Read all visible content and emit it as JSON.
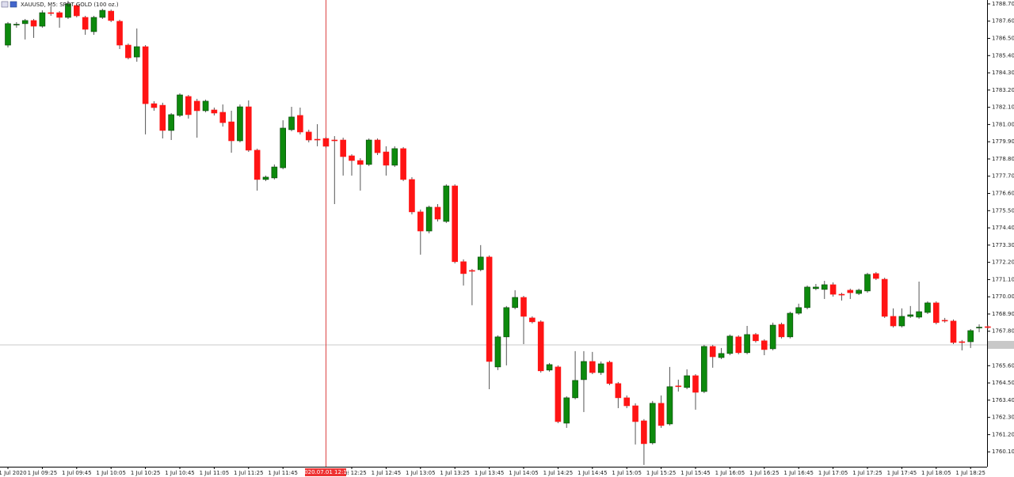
{
  "chart_data": {
    "type": "candlestick",
    "title": "XAUUSD, M5: SPOT GOLD (100 oz.)",
    "crosshair_label": "2020.07.01 12:15",
    "price_line": 1766.93,
    "up_color": "#0d8a0d",
    "down_color": "#ff1414",
    "wick_color": "#555555",
    "categories": [
      "1 Jul 2020",
      null,
      null,
      null,
      "1 Jul 09:25",
      null,
      null,
      null,
      "1 Jul 09:45",
      null,
      null,
      null,
      "1 Jul 10:05",
      null,
      null,
      null,
      "1 Jul 10:25",
      null,
      null,
      null,
      "1 Jul 10:45",
      null,
      null,
      null,
      "1 Jul 11:05",
      null,
      null,
      null,
      "1 Jul 11:25",
      null,
      null,
      null,
      "1 Jul 11:45",
      null,
      null,
      null,
      null,
      null,
      null,
      null,
      "1 Jul 12:25",
      null,
      null,
      null,
      "1 Jul 12:45",
      null,
      null,
      null,
      "1 Jul 13:05",
      null,
      null,
      null,
      "1 Jul 13:25",
      null,
      null,
      null,
      "1 Jul 13:45",
      null,
      null,
      null,
      "1 Jul 14:05",
      null,
      null,
      null,
      "1 Jul 14:25",
      null,
      null,
      null,
      "1 Jul 14:45",
      null,
      null,
      null,
      "1 Jul 15:05",
      null,
      null,
      null,
      "1 Jul 15:25",
      null,
      null,
      null,
      "1 Jul 15:45",
      null,
      null,
      null,
      "1 Jul 16:05",
      null,
      null,
      null,
      "1 Jul 16:25",
      null,
      null,
      null,
      "1 Jul 16:45",
      null,
      null,
      null,
      "1 Jul 17:05",
      null,
      null,
      null,
      "1 Jul 17:25",
      null,
      null,
      null,
      "1 Jul 17:45",
      null,
      null,
      null,
      "1 Jul 18:05",
      null,
      null,
      null,
      "1 Jul 18:25",
      null,
      null
    ],
    "open": [
      1786.07,
      1787.36,
      1787.44,
      1787.64,
      1787.28,
      1788.14,
      1788.14,
      1787.84,
      1788.6,
      1787.84,
      1786.93,
      1787.84,
      1788.24,
      1787.59,
      1786.07,
      1785.31,
      1785.97,
      1782.33,
      1782.23,
      1780.62,
      1781.58,
      1782.79,
      1782.49,
      1781.88,
      1781.93,
      1781.78,
      1781.17,
      1779.96,
      1782.13,
      1779.36,
      1777.49,
      1777.59,
      1778.24,
      1780.67,
      1781.58,
      1780.52,
      1780.06,
      1780.11,
      1780.01,
      1780.01,
      1779.0,
      1778.7,
      1778.45,
      1780.01,
      1779.25,
      1778.4,
      1779.46,
      1777.49,
      1775.42,
      1774.2,
      1775.72,
      1774.81,
      1777.08,
      1772.24,
      1771.68,
      1771.73,
      1772.54,
      1765.52,
      1767.44,
      1769.31,
      1769.96,
      1768.65,
      1768.4,
      1765.32,
      1765.52,
      1761.93,
      1763.55,
      1764.71,
      1765.87,
      1765.16,
      1765.82,
      1764.46,
      1763.55,
      1763.04,
      1762.08,
      1760.67,
      1763.2,
      1761.88,
      1764.31,
      1764.21,
      1764.96,
      1763.95,
      1766.83,
      1766.12,
      1766.38,
      1767.44,
      1766.43,
      1767.59,
      1767.19,
      1766.68,
      1768.24,
      1767.44,
      1768.95,
      1769.31,
      1770.52,
      1770.47,
      1770.77,
      1770.16,
      1770.42,
      1770.21,
      1770.37,
      1771.48,
      1771.12,
      1768.75,
      1768.14,
      1768.75,
      1768.7,
      1769.0,
      1769.61,
      1768.5,
      1768.45,
      1767.13,
      1767.13,
      1768.04,
      1768.09
    ],
    "close": [
      1787.44,
      1787.4,
      1787.64,
      1787.28,
      1788.14,
      1788.12,
      1787.84,
      1788.7,
      1787.94,
      1787.08,
      1787.84,
      1788.29,
      1787.64,
      1786.07,
      1785.26,
      1785.97,
      1782.33,
      1782.08,
      1780.62,
      1781.63,
      1782.89,
      1781.63,
      1781.88,
      1782.49,
      1781.73,
      1781.12,
      1779.96,
      1782.13,
      1779.36,
      1777.49,
      1777.64,
      1778.29,
      1780.77,
      1781.48,
      1780.52,
      1780.01,
      1780.04,
      1779.61,
      1779.99,
      1778.95,
      1778.7,
      1778.45,
      1780.01,
      1779.2,
      1778.4,
      1779.46,
      1777.49,
      1775.42,
      1774.2,
      1775.72,
      1774.96,
      1777.08,
      1772.24,
      1771.48,
      1771.66,
      1772.54,
      1765.87,
      1767.44,
      1769.31,
      1769.96,
      1768.75,
      1768.4,
      1765.27,
      1765.67,
      1762.03,
      1763.55,
      1764.66,
      1765.87,
      1765.16,
      1765.72,
      1764.46,
      1763.55,
      1763.04,
      1762.03,
      1760.62,
      1763.2,
      1761.78,
      1764.26,
      1764.29,
      1764.96,
      1763.9,
      1766.83,
      1766.17,
      1766.38,
      1767.49,
      1766.43,
      1767.59,
      1767.19,
      1766.63,
      1768.19,
      1767.44,
      1768.95,
      1769.31,
      1770.62,
      1770.62,
      1770.77,
      1770.16,
      1770.14,
      1770.26,
      1770.42,
      1771.43,
      1771.17,
      1768.75,
      1768.14,
      1768.75,
      1768.85,
      1769.05,
      1769.61,
      1768.35,
      1768.48,
      1767.08,
      1767.11,
      1767.84,
      1768.06,
      1768.07
    ],
    "high": [
      1787.54,
      1787.54,
      1787.74,
      1787.74,
      1788.29,
      1788.55,
      1788.24,
      1788.9,
      1788.7,
      1787.94,
      1787.94,
      1788.39,
      1788.34,
      1787.69,
      1786.17,
      1787.13,
      1786.07,
      1782.49,
      1782.39,
      1781.73,
      1782.99,
      1782.89,
      1782.64,
      1782.59,
      1782.08,
      1782.28,
      1781.88,
      1782.28,
      1782.54,
      1779.46,
      1777.74,
      1778.45,
      1781.27,
      1782.13,
      1782.08,
      1780.67,
      1781.02,
      1780.21,
      1780.26,
      1780.16,
      1779.1,
      1778.85,
      1780.11,
      1780.11,
      1779.61,
      1779.61,
      1779.56,
      1777.64,
      1775.57,
      1775.82,
      1775.92,
      1777.18,
      1777.18,
      1772.39,
      1771.78,
      1773.3,
      1772.64,
      1767.54,
      1769.41,
      1770.42,
      1770.06,
      1768.75,
      1768.5,
      1765.77,
      1765.62,
      1763.65,
      1766.53,
      1766.53,
      1766.48,
      1765.87,
      1765.92,
      1764.56,
      1763.7,
      1763.2,
      1762.19,
      1763.35,
      1763.7,
      1765.52,
      1764.71,
      1765.37,
      1765.06,
      1766.93,
      1766.93,
      1766.73,
      1767.59,
      1767.54,
      1768.14,
      1767.69,
      1767.29,
      1768.35,
      1768.35,
      1769.05,
      1769.56,
      1770.72,
      1770.82,
      1771.02,
      1770.92,
      1770.26,
      1770.52,
      1770.52,
      1771.53,
      1771.58,
      1771.22,
      1769.26,
      1769.26,
      1769.41,
      1770.97,
      1769.71,
      1769.71,
      1768.65,
      1768.55,
      1767.24,
      1767.94,
      1768.24,
      1768.19
    ],
    "low": [
      1785.92,
      1787.18,
      1786.43,
      1786.53,
      1787.18,
      1787.94,
      1787.18,
      1787.74,
      1787.84,
      1786.73,
      1786.73,
      1787.74,
      1787.54,
      1785.82,
      1785.16,
      1785.01,
      1780.37,
      1781.88,
      1780.11,
      1780.01,
      1781.48,
      1781.38,
      1780.16,
      1781.78,
      1781.58,
      1780.87,
      1779.2,
      1779.86,
      1779.25,
      1776.78,
      1777.39,
      1777.49,
      1778.14,
      1780.57,
      1780.37,
      1779.86,
      1779.61,
      1779.51,
      1775.92,
      1777.74,
      1777.74,
      1776.78,
      1778.35,
      1779.05,
      1777.74,
      1778.29,
      1777.39,
      1775.26,
      1772.69,
      1774.05,
      1774.81,
      1774.71,
      1772.13,
      1770.72,
      1769.46,
      1771.63,
      1764.1,
      1765.32,
      1765.62,
      1769.2,
      1766.98,
      1768.3,
      1765.16,
      1765.22,
      1761.93,
      1761.63,
      1763.45,
      1762.64,
      1765.06,
      1765.01,
      1764.36,
      1762.89,
      1762.89,
      1760.57,
      1759.26,
      1760.57,
      1761.63,
      1761.78,
      1763.95,
      1764.1,
      1762.79,
      1763.85,
      1765.47,
      1766.02,
      1766.27,
      1766.33,
      1766.33,
      1767.08,
      1766.27,
      1766.58,
      1767.34,
      1767.34,
      1768.85,
      1769.2,
      1770.42,
      1769.86,
      1770.01,
      1769.76,
      1769.86,
      1770.11,
      1770.26,
      1771.07,
      1768.65,
      1768.04,
      1768.04,
      1768.65,
      1768.6,
      1768.9,
      1768.24,
      1768.35,
      1766.98,
      1766.58,
      1766.73,
      1767.74,
      1767.94
    ],
    "ylim": [
      1759.15,
      1788.95
    ],
    "yticks": [
      {
        "value": 1788.7,
        "label": "1788.70"
      },
      {
        "value": 1787.6,
        "label": "1787.60"
      },
      {
        "value": 1786.5,
        "label": "1786.50"
      },
      {
        "value": 1785.4,
        "label": "1785.40"
      },
      {
        "value": 1784.3,
        "label": "1784.30"
      },
      {
        "value": 1783.2,
        "label": "1783.20"
      },
      {
        "value": 1782.1,
        "label": "1782.10"
      },
      {
        "value": 1781,
        "label": "1781.00"
      },
      {
        "value": 1779.9,
        "label": "1779.90"
      },
      {
        "value": 1778.8,
        "label": "1778.80"
      },
      {
        "value": 1777.7,
        "label": "1777.70"
      },
      {
        "value": 1776.6,
        "label": "1776.60"
      },
      {
        "value": 1775.5,
        "label": "1775.50"
      },
      {
        "value": 1774.4,
        "label": "1774.40"
      },
      {
        "value": 1773.3,
        "label": "1773.30"
      },
      {
        "value": 1772.2,
        "label": "1772.20"
      },
      {
        "value": 1771.1,
        "label": "1771.10"
      },
      {
        "value": 1770,
        "label": "1770.00"
      },
      {
        "value": 1768.9,
        "label": "1768.90"
      },
      {
        "value": 1767.8,
        "label": "1767.80"
      },
      {
        "value": 1765.6,
        "label": "1765.60"
      },
      {
        "value": 1764.5,
        "label": "1764.50"
      },
      {
        "value": 1763.4,
        "label": "1763.40"
      },
      {
        "value": 1762.3,
        "label": "1762.30"
      },
      {
        "value": 1761.2,
        "label": "1761.20"
      },
      {
        "value": 1760.1,
        "label": "1760.10"
      }
    ]
  }
}
